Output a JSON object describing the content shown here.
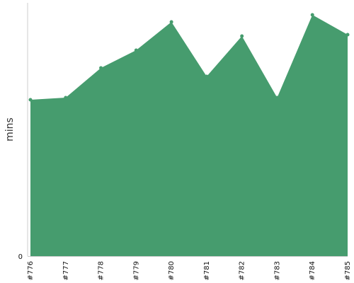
{
  "chart_data": {
    "type": "area",
    "title": "",
    "xlabel": "",
    "ylabel": "mins",
    "categories": [
      "#776",
      "#777",
      "#778",
      "#779",
      "#780",
      "#781",
      "#782",
      "#783",
      "#784",
      "#785"
    ],
    "series": [
      {
        "values": [
          221,
          224,
          266,
          291,
          331,
          254,
          311,
          224,
          341,
          313
        ]
      }
    ],
    "y_tick_labels": [
      "0"
    ],
    "ylim": [
      0,
      360
    ],
    "grid": false,
    "legend": "none",
    "colors": {
      "fill": "#469c6e",
      "axis": "#cccccc"
    }
  }
}
